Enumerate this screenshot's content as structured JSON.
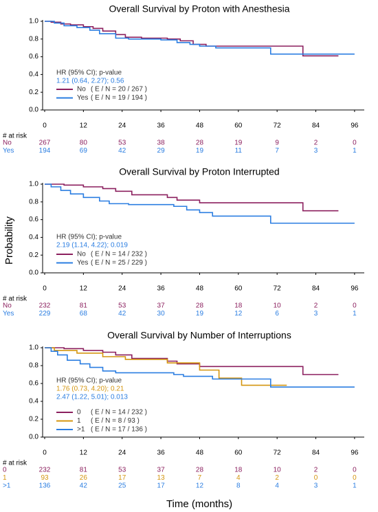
{
  "figure": {
    "ylabel": "Probability",
    "xlabel": "Time (months)"
  },
  "chart_data": [
    {
      "type": "line",
      "step": true,
      "title": "Overall Survival by Proton with Anesthesia",
      "xlim": [
        0,
        99
      ],
      "ylim": [
        0,
        1
      ],
      "xticks": [
        0,
        12,
        24,
        36,
        48,
        60,
        72,
        84,
        96
      ],
      "yticks": [
        {
          "value": 0,
          "label": "0.0"
        },
        0.2,
        0.4,
        0.6,
        0.8,
        {
          "value": 1,
          "label": "1.0"
        }
      ],
      "annotations": [
        {
          "text": "HR (95% CI); p-value",
          "color": "#333333"
        },
        {
          "text": "1.21 (0.64, 2.27); 0.56",
          "color": "#2a7de1"
        }
      ],
      "risk_title": "# at risk",
      "series": [
        {
          "name": "No",
          "events_label": "( E / N = 20 / 267 )",
          "color": "#8b1f5e",
          "x": [
            0,
            2,
            5,
            8,
            12,
            15,
            18,
            22,
            25,
            30,
            38,
            42,
            46,
            50,
            80,
            91
          ],
          "values": [
            1,
            0.99,
            0.97,
            0.96,
            0.94,
            0.92,
            0.89,
            0.85,
            0.82,
            0.81,
            0.8,
            0.78,
            0.74,
            0.72,
            0.61,
            0.61
          ],
          "at_risk": [
            267,
            80,
            53,
            38,
            28,
            19,
            9,
            2,
            0
          ]
        },
        {
          "name": "Yes",
          "events_label": "( E / N = 19 / 194 )",
          "color": "#2a7de1",
          "x": [
            0,
            3,
            6,
            10,
            14,
            17,
            22,
            26,
            36,
            41,
            45,
            48,
            53,
            70,
            96
          ],
          "values": [
            1,
            0.98,
            0.95,
            0.93,
            0.9,
            0.86,
            0.81,
            0.8,
            0.79,
            0.76,
            0.74,
            0.72,
            0.7,
            0.63,
            0.63
          ],
          "at_risk": [
            194,
            69,
            42,
            29,
            19,
            11,
            7,
            3,
            1
          ]
        }
      ]
    },
    {
      "type": "line",
      "step": true,
      "title": "Overall Survival by Proton Interrupted",
      "xlim": [
        0,
        99
      ],
      "ylim": [
        0,
        1
      ],
      "xticks": [
        0,
        12,
        24,
        36,
        48,
        60,
        72,
        84,
        96
      ],
      "yticks": [
        {
          "value": 0,
          "label": "0.0"
        },
        0.2,
        0.4,
        0.6,
        0.8,
        {
          "value": 1,
          "label": "1.0"
        }
      ],
      "annotations": [
        {
          "text": "HR (95% CI); p-value",
          "color": "#333333"
        },
        {
          "text": "2.19 (1.14, 4.22); 0.019",
          "color": "#2a7de1"
        }
      ],
      "risk_title": "# at risk",
      "series": [
        {
          "name": "No",
          "events_label": "( E / N = 14 / 232 )",
          "color": "#8b1f5e",
          "x": [
            0,
            6,
            12,
            18,
            22,
            27,
            38,
            41,
            48,
            80,
            91
          ],
          "values": [
            1,
            0.99,
            0.97,
            0.95,
            0.92,
            0.88,
            0.85,
            0.82,
            0.79,
            0.7,
            0.7
          ],
          "at_risk": [
            232,
            81,
            53,
            37,
            28,
            18,
            10,
            2,
            0
          ]
        },
        {
          "name": "Yes",
          "events_label": "( E / N = 25 / 229 )",
          "color": "#2a7de1",
          "x": [
            0,
            2,
            5,
            8,
            12,
            17,
            20,
            26,
            40,
            44,
            48,
            52,
            70,
            96
          ],
          "values": [
            1,
            0.97,
            0.93,
            0.89,
            0.85,
            0.81,
            0.78,
            0.77,
            0.75,
            0.71,
            0.68,
            0.64,
            0.56,
            0.56
          ],
          "at_risk": [
            229,
            68,
            42,
            30,
            19,
            12,
            6,
            3,
            1
          ]
        }
      ]
    },
    {
      "type": "line",
      "step": true,
      "title": "Overall Survival by Number of Interruptions",
      "xlim": [
        0,
        99
      ],
      "ylim": [
        0,
        1
      ],
      "xticks": [
        0,
        12,
        24,
        36,
        48,
        60,
        72,
        84,
        96
      ],
      "yticks": [
        {
          "value": 0,
          "label": "0.0"
        },
        0.2,
        0.4,
        0.6,
        0.8,
        {
          "value": 1,
          "label": "1.0"
        }
      ],
      "annotations": [
        {
          "text": "HR (95% CI); p-value",
          "color": "#333333"
        },
        {
          "text": "1.76 (0.73, 4.20); 0.21",
          "color": "#d4950f"
        },
        {
          "text": "2.47 (1.22, 5.01); 0.013",
          "color": "#2a7de1"
        }
      ],
      "risk_title": "# at risk",
      "series": [
        {
          "name": "0",
          "events_label": "( E / N = 14 / 232 )",
          "color": "#8b1f5e",
          "x": [
            0,
            6,
            12,
            18,
            22,
            27,
            38,
            41,
            48,
            80,
            91
          ],
          "values": [
            1,
            0.99,
            0.97,
            0.95,
            0.92,
            0.88,
            0.85,
            0.82,
            0.79,
            0.7,
            0.7
          ],
          "at_risk": [
            232,
            81,
            53,
            37,
            28,
            18,
            10,
            2,
            0
          ]
        },
        {
          "name": "1",
          "events_label": "( E / N = 8 / 93 )",
          "color": "#d4950f",
          "x": [
            0,
            3,
            10,
            18,
            25,
            38,
            48,
            54,
            61,
            75
          ],
          "values": [
            1,
            0.97,
            0.94,
            0.9,
            0.87,
            0.83,
            0.75,
            0.66,
            0.58,
            0.58
          ],
          "at_risk": [
            93,
            26,
            17,
            13,
            7,
            4,
            2,
            0,
            0
          ]
        },
        {
          "name": ">1",
          "events_label": "( E / N = 17 / 136 )",
          "color": "#2a7de1",
          "x": [
            0,
            2,
            4,
            7,
            11,
            14,
            18,
            22,
            40,
            43,
            52,
            70,
            96
          ],
          "values": [
            1,
            0.96,
            0.92,
            0.86,
            0.82,
            0.78,
            0.74,
            0.72,
            0.7,
            0.68,
            0.65,
            0.56,
            0.56
          ],
          "at_risk": [
            136,
            42,
            25,
            17,
            12,
            8,
            4,
            3,
            1
          ]
        }
      ]
    }
  ]
}
